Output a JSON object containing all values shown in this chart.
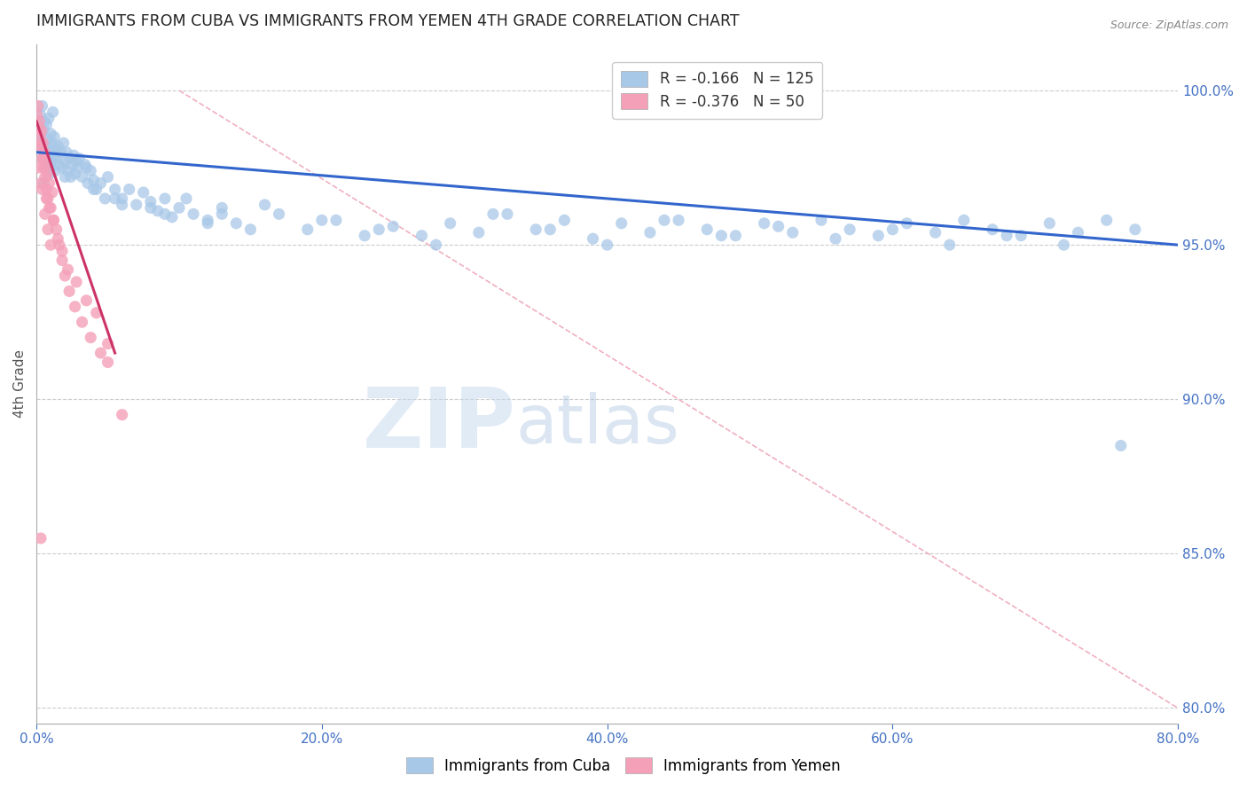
{
  "title": "IMMIGRANTS FROM CUBA VS IMMIGRANTS FROM YEMEN 4TH GRADE CORRELATION CHART",
  "source": "Source: ZipAtlas.com",
  "ylabel_left": "4th Grade",
  "x_tick_labels": [
    "0.0%",
    "20.0%",
    "40.0%",
    "60.0%",
    "80.0%"
  ],
  "x_tick_values": [
    0.0,
    20.0,
    40.0,
    60.0,
    80.0
  ],
  "y_tick_labels_right": [
    "100.0%",
    "95.0%",
    "90.0%",
    "85.0%",
    "80.0%"
  ],
  "y_tick_values": [
    100.0,
    95.0,
    90.0,
    85.0,
    80.0
  ],
  "xlim": [
    0.0,
    80.0
  ],
  "ylim": [
    79.5,
    101.5
  ],
  "legend_blue_r": "R = -0.166",
  "legend_blue_n": "N = 125",
  "legend_pink_r": "R = -0.376",
  "legend_pink_n": "N = 50",
  "watermark_zip": "ZIP",
  "watermark_atlas": "atlas",
  "blue_color": "#a8c8e8",
  "pink_color": "#f4a0b8",
  "trend_blue_color": "#3366cc",
  "trend_pink_color": "#cc3366",
  "diag_line_color": "#f0b0c0",
  "axis_color": "#4472c4",
  "title_color": "#222222",
  "background_color": "#ffffff",
  "blue_scatter_x": [
    0.15,
    0.2,
    0.25,
    0.3,
    0.35,
    0.4,
    0.45,
    0.5,
    0.55,
    0.6,
    0.65,
    0.7,
    0.75,
    0.8,
    0.85,
    0.9,
    0.95,
    1.0,
    1.05,
    1.1,
    1.15,
    1.2,
    1.25,
    1.3,
    1.35,
    1.4,
    1.5,
    1.6,
    1.7,
    1.8,
    1.9,
    2.0,
    2.1,
    2.2,
    2.3,
    2.4,
    2.5,
    2.6,
    2.7,
    2.8,
    2.9,
    3.0,
    3.2,
    3.4,
    3.6,
    3.8,
    4.0,
    4.2,
    4.5,
    4.8,
    5.0,
    5.5,
    6.0,
    6.5,
    7.0,
    7.5,
    8.0,
    8.5,
    9.0,
    9.5,
    10.0,
    11.0,
    12.0,
    13.0,
    14.0,
    15.0,
    17.0,
    19.0,
    21.0,
    23.0,
    25.0,
    27.0,
    29.0,
    31.0,
    33.0,
    35.0,
    37.0,
    39.0,
    41.0,
    43.0,
    45.0,
    47.0,
    49.0,
    51.0,
    53.0,
    55.0,
    57.0,
    59.0,
    61.0,
    63.0,
    65.0,
    67.0,
    69.0,
    71.0,
    73.0,
    75.0,
    77.0,
    3.5,
    5.5,
    8.0,
    10.5,
    13.0,
    16.0,
    20.0,
    24.0,
    28.0,
    32.0,
    36.0,
    40.0,
    44.0,
    48.0,
    52.0,
    56.0,
    60.0,
    64.0,
    68.0,
    72.0,
    0.5,
    1.0,
    2.0,
    4.0,
    6.0,
    9.0,
    12.0,
    76.0
  ],
  "blue_scatter_y": [
    98.5,
    99.0,
    98.8,
    99.2,
    98.3,
    99.5,
    97.8,
    98.7,
    99.0,
    97.5,
    98.2,
    98.9,
    97.6,
    98.4,
    99.1,
    97.3,
    98.0,
    98.6,
    97.7,
    98.3,
    99.3,
    97.9,
    98.5,
    97.4,
    98.1,
    97.8,
    98.2,
    97.6,
    98.0,
    97.5,
    98.3,
    97.7,
    98.0,
    97.4,
    97.8,
    97.2,
    97.6,
    97.9,
    97.3,
    97.7,
    97.5,
    97.8,
    97.2,
    97.6,
    97.0,
    97.4,
    97.1,
    96.8,
    97.0,
    96.5,
    97.2,
    96.8,
    96.5,
    96.8,
    96.3,
    96.7,
    96.4,
    96.1,
    96.5,
    95.9,
    96.2,
    96.0,
    95.8,
    96.2,
    95.7,
    95.5,
    96.0,
    95.5,
    95.8,
    95.3,
    95.6,
    95.3,
    95.7,
    95.4,
    96.0,
    95.5,
    95.8,
    95.2,
    95.7,
    95.4,
    95.8,
    95.5,
    95.3,
    95.7,
    95.4,
    95.8,
    95.5,
    95.3,
    95.7,
    95.4,
    95.8,
    95.5,
    95.3,
    95.7,
    95.4,
    95.8,
    95.5,
    97.5,
    96.5,
    96.2,
    96.5,
    96.0,
    96.3,
    95.8,
    95.5,
    95.0,
    96.0,
    95.5,
    95.0,
    95.8,
    95.3,
    95.6,
    95.2,
    95.5,
    95.0,
    95.3,
    95.0,
    97.0,
    97.5,
    97.2,
    96.8,
    96.3,
    96.0,
    95.7,
    88.5
  ],
  "pink_scatter_x": [
    0.05,
    0.1,
    0.15,
    0.2,
    0.25,
    0.3,
    0.35,
    0.4,
    0.45,
    0.5,
    0.55,
    0.6,
    0.65,
    0.7,
    0.75,
    0.8,
    0.9,
    1.0,
    1.1,
    1.2,
    1.4,
    1.6,
    1.8,
    2.0,
    2.3,
    2.7,
    3.2,
    3.8,
    4.5,
    5.0,
    0.1,
    0.2,
    0.3,
    0.4,
    0.5,
    0.6,
    0.7,
    0.8,
    0.9,
    1.0,
    1.2,
    1.5,
    1.8,
    2.2,
    2.8,
    3.5,
    4.2,
    5.0,
    6.0,
    0.3
  ],
  "pink_scatter_y": [
    99.2,
    99.5,
    98.8,
    99.0,
    98.5,
    98.2,
    98.7,
    97.8,
    98.3,
    97.5,
    98.0,
    97.2,
    97.6,
    96.8,
    97.3,
    96.5,
    97.0,
    96.2,
    96.7,
    95.8,
    95.5,
    95.0,
    94.5,
    94.0,
    93.5,
    93.0,
    92.5,
    92.0,
    91.5,
    91.2,
    97.5,
    98.2,
    97.0,
    96.8,
    97.8,
    96.0,
    96.5,
    95.5,
    96.2,
    95.0,
    95.8,
    95.2,
    94.8,
    94.2,
    93.8,
    93.2,
    92.8,
    91.8,
    89.5,
    85.5
  ],
  "blue_trend_x": [
    0.0,
    80.0
  ],
  "blue_trend_y": [
    98.0,
    95.0
  ],
  "pink_trend_x": [
    0.0,
    5.5
  ],
  "pink_trend_y": [
    99.0,
    91.5
  ],
  "diag_line_x": [
    10.0,
    80.0
  ],
  "diag_line_y": [
    100.0,
    80.0
  ]
}
